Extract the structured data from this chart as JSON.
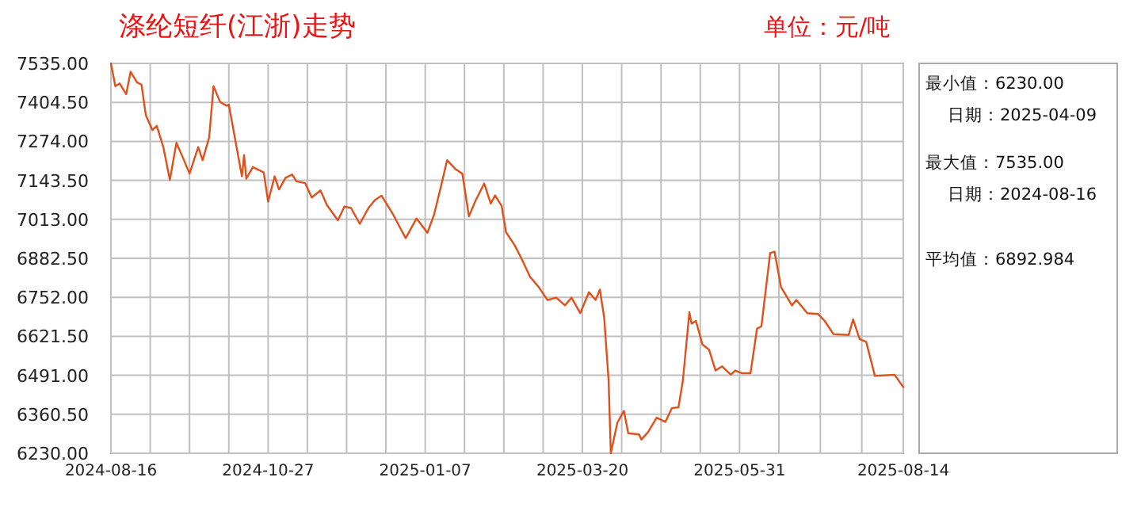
{
  "chart_data": {
    "type": "line",
    "title": "涤纶短纤(江浙)走势",
    "subtitle": "单位：元/吨",
    "annotations": [
      "最小值：6230.00",
      "日期：2025-04-09",
      "最大值：7535.00",
      "日期：2024-08-16",
      "平均值：6892.984"
    ],
    "x": [
      "2024-08-16",
      "2024-08-18",
      "2024-08-20",
      "2024-08-23",
      "2024-08-25",
      "2024-08-28",
      "2024-08-30",
      "2024-09-01",
      "2024-09-04",
      "2024-09-06",
      "2024-09-09",
      "2024-09-12",
      "2024-09-15",
      "2024-09-18",
      "2024-09-21",
      "2024-09-25",
      "2024-09-27",
      "2024-09-30",
      "2024-10-02",
      "2024-10-05",
      "2024-10-08",
      "2024-10-09",
      "2024-10-13",
      "2024-10-15",
      "2024-10-16",
      "2024-10-17",
      "2024-10-20",
      "2024-10-25",
      "2024-10-27",
      "2024-10-30",
      "2024-11-01",
      "2024-11-04",
      "2024-11-07",
      "2024-11-09",
      "2024-11-13",
      "2024-11-16",
      "2024-11-20",
      "2024-11-23",
      "2024-11-28",
      "2024-12-01",
      "2024-12-04",
      "2024-12-08",
      "2024-12-12",
      "2024-12-15",
      "2024-12-18",
      "2024-12-23",
      "2024-12-29",
      "2025-01-03",
      "2025-01-08",
      "2025-01-11",
      "2025-01-14",
      "2025-01-17",
      "2025-01-21",
      "2025-01-24",
      "2025-01-27",
      "2025-01-30",
      "2025-02-03",
      "2025-02-06",
      "2025-02-08",
      "2025-02-11",
      "2025-02-13",
      "2025-02-17",
      "2025-02-20",
      "2025-02-24",
      "2025-02-28",
      "2025-03-04",
      "2025-03-08",
      "2025-03-12",
      "2025-03-15",
      "2025-03-19",
      "2025-03-23",
      "2025-03-26",
      "2025-03-28",
      "2025-03-30",
      "2025-04-01",
      "2025-04-02",
      "2025-04-05",
      "2025-04-08",
      "2025-04-10",
      "2025-04-15",
      "2025-04-16",
      "2025-04-19",
      "2025-04-23",
      "2025-04-27",
      "2025-04-30",
      "2025-05-03",
      "2025-05-05",
      "2025-05-08",
      "2025-05-09",
      "2025-05-11",
      "2025-05-14",
      "2025-05-17",
      "2025-05-20",
      "2025-05-23",
      "2025-05-27",
      "2025-05-29",
      "2025-06-01",
      "2025-06-05",
      "2025-06-08",
      "2025-06-10",
      "2025-06-14",
      "2025-06-16",
      "2025-06-19",
      "2025-06-24",
      "2025-06-26",
      "2025-07-01",
      "2025-07-06",
      "2025-07-09",
      "2025-07-13",
      "2025-07-20",
      "2025-07-22",
      "2025-07-25",
      "2025-07-28",
      "2025-08-01",
      "2025-08-10",
      "2025-08-14"
    ],
    "series": [
      {
        "color": "#e0501a",
        "values": [
          7535,
          7459,
          7468,
          7432,
          7507,
          7471,
          7464,
          7361,
          7312,
          7326,
          7255,
          7145,
          7269,
          7219,
          7166,
          7255,
          7211,
          7287,
          7459,
          7406,
          7393,
          7397,
          7237,
          7157,
          7228,
          7149,
          7188,
          7170,
          7072,
          7157,
          7113,
          7152,
          7163,
          7140,
          7134,
          7086,
          7110,
          7060,
          7010,
          7056,
          7051,
          6998,
          7051,
          7078,
          7092,
          7033,
          6950,
          7016,
          6968,
          7028,
          7117,
          7211,
          7180,
          7166,
          7023,
          7075,
          7133,
          7066,
          7093,
          7058,
          6970,
          6926,
          6883,
          6821,
          6786,
          6743,
          6751,
          6725,
          6751,
          6699,
          6769,
          6743,
          6778,
          6682,
          6472,
          6230,
          6332,
          6372,
          6297,
          6293,
          6276,
          6300,
          6349,
          6335,
          6381,
          6384,
          6472,
          6702,
          6664,
          6673,
          6594,
          6577,
          6507,
          6521,
          6493,
          6507,
          6498,
          6498,
          6647,
          6655,
          6900,
          6905,
          6786,
          6725,
          6743,
          6699,
          6696,
          6673,
          6629,
          6626,
          6678,
          6612,
          6603,
          6489,
          6493,
          6451
        ]
      }
    ],
    "xlim": [
      "2024-08-16",
      "2025-08-14"
    ],
    "xticks": [
      {
        "value": "2024-08-16",
        "label": "2024-08-16"
      },
      {
        "value": "2024-09-03",
        "label": null
      },
      {
        "value": "2024-09-21",
        "label": null
      },
      {
        "value": "2024-10-09",
        "label": null
      },
      {
        "value": "2024-10-27",
        "label": "2024-10-27"
      },
      {
        "value": "2024-11-14",
        "label": null
      },
      {
        "value": "2024-12-02",
        "label": null
      },
      {
        "value": "2024-12-20",
        "label": null
      },
      {
        "value": "2025-01-07",
        "label": "2025-01-07"
      },
      {
        "value": "2025-01-25",
        "label": null
      },
      {
        "value": "2025-02-12",
        "label": null
      },
      {
        "value": "2025-03-02",
        "label": null
      },
      {
        "value": "2025-03-20",
        "label": "2025-03-20"
      },
      {
        "value": "2025-04-07",
        "label": null
      },
      {
        "value": "2025-04-25",
        "label": null
      },
      {
        "value": "2025-05-13",
        "label": null
      },
      {
        "value": "2025-05-31",
        "label": "2025-05-31"
      },
      {
        "value": "2025-06-18",
        "label": null
      },
      {
        "value": "2025-07-07",
        "label": null
      },
      {
        "value": "2025-07-26",
        "label": null
      },
      {
        "value": "2025-08-14",
        "label": "2025-08-14"
      }
    ],
    "ylim": [
      6230,
      7535
    ],
    "yticks": [
      {
        "value": 6230,
        "label": "6230.00"
      },
      {
        "value": 6360.5,
        "label": "6360.50"
      },
      {
        "value": 6491,
        "label": "6491.00"
      },
      {
        "value": 6621.5,
        "label": "6621.50"
      },
      {
        "value": 6752,
        "label": "6752.00"
      },
      {
        "value": 6882.5,
        "label": "6882.50"
      },
      {
        "value": 7013,
        "label": "7013.00"
      },
      {
        "value": 7143.5,
        "label": "7143.50"
      },
      {
        "value": 7274,
        "label": "7274.00"
      },
      {
        "value": 7404.5,
        "label": "7404.50"
      },
      {
        "value": 7535,
        "label": "7535.00"
      }
    ],
    "grid": true,
    "marker": "none",
    "line_style": "solid"
  }
}
